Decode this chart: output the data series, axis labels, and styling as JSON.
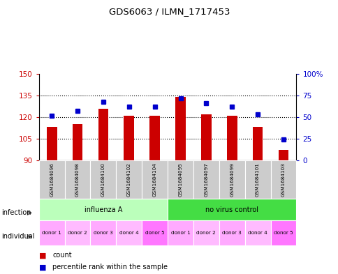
{
  "title": "GDS6063 / ILMN_1717453",
  "samples": [
    "GSM1684096",
    "GSM1684098",
    "GSM1684100",
    "GSM1684102",
    "GSM1684104",
    "GSM1684095",
    "GSM1684097",
    "GSM1684099",
    "GSM1684101",
    "GSM1684103"
  ],
  "counts": [
    113,
    115,
    126,
    121,
    121,
    134,
    122,
    121,
    113,
    97
  ],
  "percentiles": [
    52,
    57,
    68,
    62,
    62,
    72,
    66,
    62,
    53,
    24
  ],
  "ylim_left": [
    90,
    150
  ],
  "ylim_right": [
    0,
    100
  ],
  "yticks_left": [
    90,
    105,
    120,
    135,
    150
  ],
  "yticks_right": [
    0,
    25,
    50,
    75,
    100
  ],
  "bar_color": "#cc0000",
  "dot_color": "#0000cc",
  "infection_groups": [
    {
      "label": "influenza A",
      "start": 0,
      "end": 5,
      "color": "#bbffbb"
    },
    {
      "label": "no virus control",
      "start": 5,
      "end": 10,
      "color": "#44dd44"
    }
  ],
  "individual_labels": [
    "donor 1",
    "donor 2",
    "donor 3",
    "donor 4",
    "donor 5",
    "donor 1",
    "donor 2",
    "donor 3",
    "donor 4",
    "donor 5"
  ],
  "individual_colors": [
    "#ffaaff",
    "#ffbbff",
    "#ffaaff",
    "#ffbbff",
    "#ff77ff",
    "#ffaaff",
    "#ffbbff",
    "#ffaaff",
    "#ffbbff",
    "#ff77ff"
  ],
  "sample_bg_color": "#cccccc",
  "legend_count_color": "#cc0000",
  "legend_dot_color": "#0000cc",
  "yticklabel_color_left": "#cc0000",
  "yticklabel_color_right": "#0000cc"
}
